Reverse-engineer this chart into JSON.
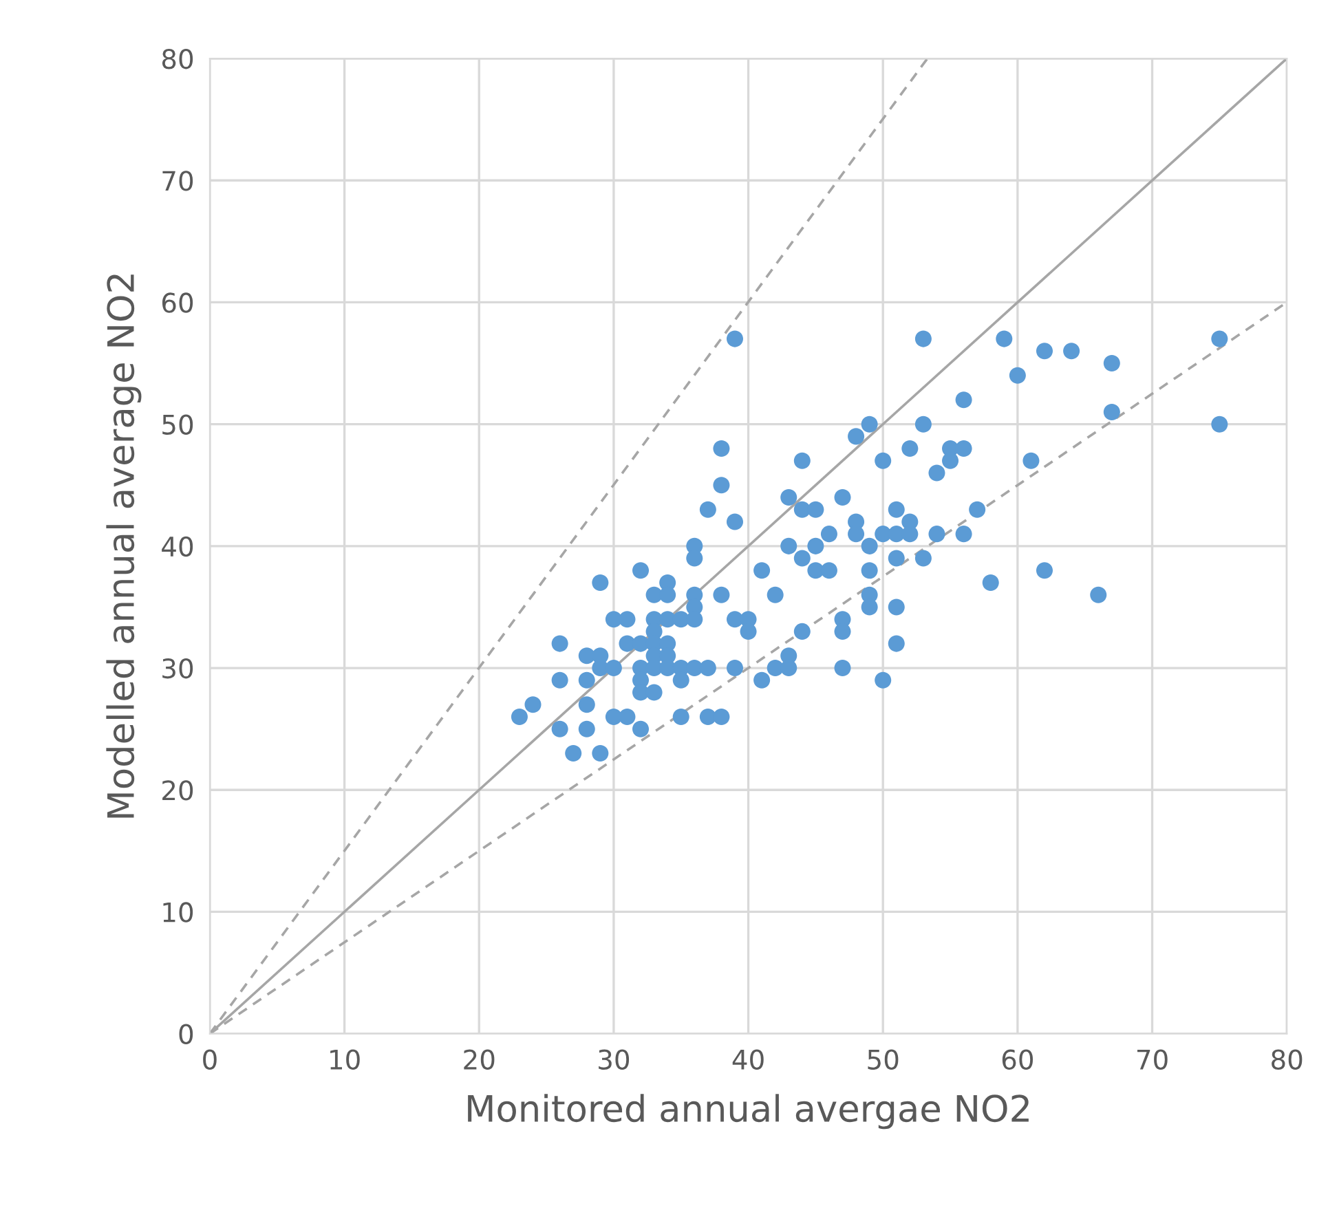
{
  "chart_data": {
    "type": "scatter",
    "xlabel": "Monitored annual avergae NO2",
    "ylabel": "Modelled annual average NO2",
    "xlim": [
      0,
      80
    ],
    "ylim": [
      0,
      80
    ],
    "xticks": [
      0,
      10,
      20,
      30,
      40,
      50,
      60,
      70,
      80
    ],
    "yticks": [
      0,
      10,
      20,
      30,
      40,
      50,
      60,
      70,
      80
    ],
    "grid": true,
    "legend": false,
    "series": [
      {
        "type": "line",
        "color": "#a6a6a6",
        "line_style": "solid",
        "marker": "none",
        "x": [
          0,
          80
        ],
        "values": [
          0,
          80
        ]
      },
      {
        "type": "line",
        "color": "#a6a6a6",
        "line_style": "dashed",
        "marker": "none",
        "x": [
          0,
          53.3
        ],
        "values": [
          0,
          80
        ]
      },
      {
        "type": "line",
        "color": "#a6a6a6",
        "line_style": "dashed",
        "marker": "none",
        "x": [
          0,
          80
        ],
        "values": [
          0,
          60
        ]
      },
      {
        "color": "#5b9bd5",
        "marker": "circle",
        "x": [
          23,
          24,
          26,
          26,
          26,
          27,
          28,
          28,
          28,
          28,
          29,
          29,
          29,
          29,
          30,
          30,
          30,
          31,
          31,
          31,
          32,
          32,
          32,
          32,
          32,
          32,
          33,
          33,
          33,
          33,
          33,
          33,
          33,
          34,
          34,
          34,
          34,
          34,
          34,
          35,
          35,
          35,
          35,
          36,
          36,
          36,
          36,
          36,
          36,
          37,
          37,
          37,
          38,
          38,
          38,
          38,
          39,
          39,
          39,
          39,
          40,
          40,
          41,
          41,
          42,
          42,
          43,
          43,
          43,
          43,
          44,
          44,
          44,
          44,
          45,
          45,
          45,
          46,
          46,
          47,
          47,
          47,
          47,
          48,
          48,
          48,
          49,
          49,
          49,
          49,
          49,
          50,
          50,
          50,
          51,
          51,
          51,
          51,
          51,
          52,
          52,
          52,
          53,
          53,
          53,
          54,
          54,
          55,
          55,
          56,
          56,
          56,
          57,
          58,
          59,
          60,
          61,
          62,
          62,
          64,
          66,
          67,
          67,
          75,
          75
        ],
        "values": [
          26,
          27,
          32,
          29,
          25,
          23,
          31,
          29,
          27,
          25,
          37,
          31,
          30,
          23,
          34,
          30,
          26,
          34,
          32,
          26,
          38,
          32,
          30,
          29,
          28,
          25,
          36,
          34,
          33,
          32,
          31,
          30,
          28,
          37,
          36,
          34,
          32,
          31,
          30,
          34,
          30,
          29,
          26,
          40,
          39,
          36,
          35,
          34,
          30,
          43,
          30,
          26,
          48,
          45,
          36,
          26,
          57,
          42,
          34,
          30,
          34,
          33,
          38,
          29,
          36,
          30,
          44,
          40,
          31,
          30,
          47,
          43,
          39,
          33,
          43,
          40,
          38,
          41,
          38,
          44,
          34,
          33,
          30,
          49,
          42,
          41,
          50,
          40,
          38,
          36,
          35,
          47,
          41,
          29,
          43,
          41,
          39,
          35,
          32,
          48,
          42,
          41,
          57,
          50,
          39,
          46,
          41,
          48,
          47,
          52,
          48,
          41,
          43,
          37,
          57,
          54,
          47,
          56,
          38,
          56,
          36,
          55,
          51,
          57,
          50
        ]
      }
    ]
  }
}
